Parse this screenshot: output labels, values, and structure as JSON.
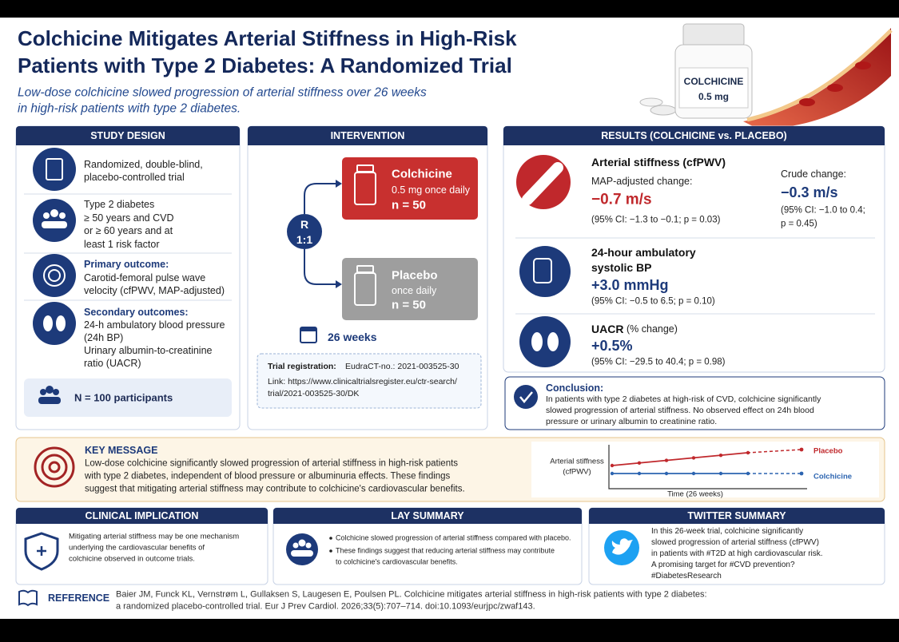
{
  "header": {
    "title": [
      "Colchicine Mitigates Arterial Stiffness in High-Risk",
      "Patients with Type 2 Diabetes: A Randomized Trial"
    ],
    "subtitle": [
      "Low-dose colchicine slowed progression of arterial stiffness over 26 weeks",
      "in high-risk patients with type 2 diabetes."
    ],
    "bottle_label": [
      "COLCHICINE",
      "0.5 mg"
    ]
  },
  "study_design": {
    "heading": "STUDY DESIGN",
    "items": [
      {
        "lines": [
          "Randomized, double-blind,",
          "placebo-controlled trial"
        ]
      },
      {
        "lines": [
          "Type 2 diabetes",
          "≥ 50 years and CVD",
          "or ≥ 60 years and at",
          "least 1 risk factor"
        ]
      },
      {
        "label": "Primary outcome:",
        "lines": [
          "Carotid-femoral pulse wave",
          "velocity (cfPWV, MAP-adjusted)"
        ]
      },
      {
        "label": "Secondary outcomes:",
        "lines": [
          "24-h ambulatory blood pressure",
          "(24h BP)",
          "Urinary albumin-to-creatinine",
          "ratio (UACR)"
        ]
      }
    ],
    "participants": "N = 100 participants"
  },
  "intervention": {
    "heading": "INTERVENTION",
    "randomization": [
      "R",
      "1:1"
    ],
    "arms": [
      {
        "name": "Colchicine",
        "dose": "0.5 mg once daily",
        "n": "n = 50"
      },
      {
        "name": "Placebo",
        "dose": "once daily",
        "n": "n = 50"
      }
    ],
    "duration": "26 weeks",
    "registration": {
      "label": "Trial registration:",
      "id": "EudraCT-no.: 2021-003525-30",
      "link": [
        "Link: https://www.clinicaltrialsregister.eu/ctr-search/",
        "trial/2021-003525-30/DK"
      ]
    }
  },
  "results": {
    "heading": "RESULTS (COLCHICINE vs. PLACEBO)",
    "items": [
      {
        "title": "Arterial stiffness (cfPWV)",
        "sub": "MAP-adjusted change:",
        "value": "−0.7 m/s",
        "ci": "(95% CI: −1.3 to −0.1; p = 0.03)",
        "crude": {
          "label": "Crude change:",
          "value": "−0.3 m/s",
          "ci": [
            "(95% CI: −1.0 to 0.4;",
            "p = 0.45)"
          ]
        }
      },
      {
        "title": [
          "24-hour ambulatory",
          "systolic BP"
        ],
        "value": "+3.0 mmHg",
        "ci": "(95% CI: −0.5 to 6.5; p = 0.10)"
      },
      {
        "title": "UACR",
        "title_suffix": "(% change)",
        "value": "+0.5%",
        "ci": "(95% CI: −29.5 to 40.4; p = 0.98)"
      }
    ],
    "conclusion": {
      "label": "Conclusion:",
      "lines": [
        "In patients with type 2 diabetes at high-risk of CVD, colchicine significantly",
        "slowed progression of arterial stiffness. No observed effect on 24h blood",
        "pressure or urinary albumin to creatinine ratio."
      ]
    }
  },
  "key_message": {
    "heading": "KEY MESSAGE",
    "lines": [
      "Low-dose colchicine significantly slowed progression of arterial stiffness in high-risk patients",
      "with type 2 diabetes, independent of blood pressure or albuminuria effects. These findings",
      "suggest that mitigating arterial stiffness may contribute to colchicine's cardiovascular benefits."
    ],
    "chart": {
      "y_label": [
        "Arterial stiffness",
        "(cfPWV)"
      ],
      "x_label": "Time (26 weeks)",
      "series": [
        {
          "name": "Placebo",
          "color": "#c0282c"
        },
        {
          "name": "Colchicine",
          "color": "#2c64b0"
        }
      ]
    }
  },
  "clinical_implication": {
    "heading": "CLINICAL IMPLICATION",
    "lines": [
      "Mitigating arterial stiffness may be one mechanism",
      "underlying the cardiovascular benefits of",
      "colchicine observed in outcome trials."
    ]
  },
  "lay_summary": {
    "heading": "LAY SUMMARY",
    "bullets": [
      {
        "lines": [
          "Colchicine slowed progression of arterial stiffness compared with placebo."
        ]
      },
      {
        "lines": [
          "These findings suggest that reducing arterial stiffness may contribute",
          "to colchicine's cardiovascular benefits."
        ]
      }
    ]
  },
  "twitter_summary": {
    "heading": "TWITTER SUMMARY",
    "lines": [
      "In this 26-week trial, colchicine significantly",
      "slowed progression of arterial stiffness (cfPWV)",
      "in patients with #T2D at high cardiovascular risk.",
      "A promising target for #CVD prevention?",
      "#DiabetesResearch"
    ]
  },
  "reference": {
    "label": "REFERENCE",
    "lines": [
      "Baier JM, Funck KL, Vernstrøm L, Gullaksen S, Laugesen E, Poulsen PL. Colchicine mitigates arterial stiffness in high-risk patients with type 2 diabetes:",
      "a randomized placebo-controlled trial. Eur J Prev Cardiol. 2026;33(5):707–714. doi:10.1093/eurjpc/zwaf143."
    ]
  }
}
